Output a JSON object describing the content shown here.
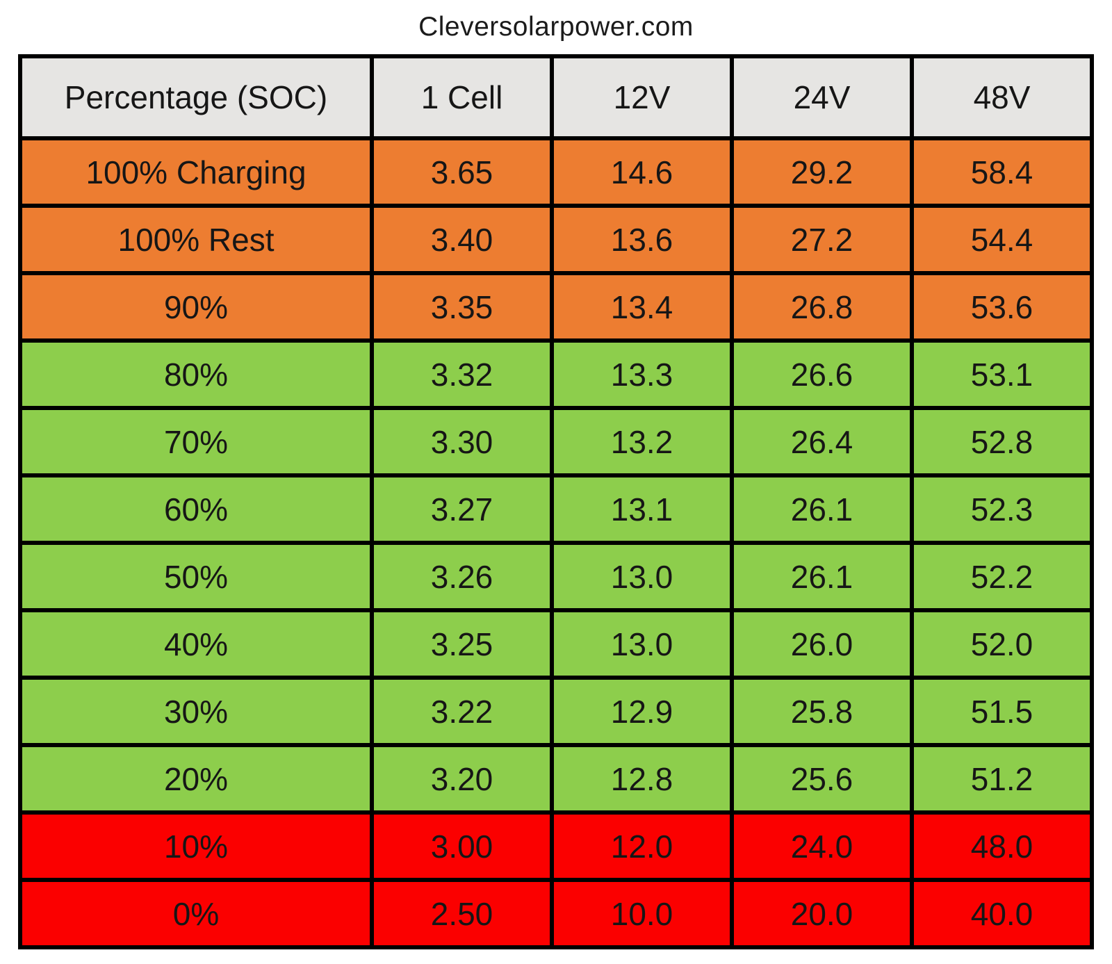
{
  "title": "Cleversolarpower.com",
  "colors": {
    "header_bg": "#E6E5E3",
    "orange": "#ED7D31",
    "green": "#8DCE4C",
    "red": "#FB0000",
    "border": "#000000",
    "text": "#1A1A1A"
  },
  "chart_data": {
    "type": "table",
    "title": "Cleversolarpower.com",
    "columns": [
      "Percentage (SOC)",
      "1 Cell",
      "12V",
      "24V",
      "48V"
    ],
    "rows": [
      {
        "label": "100% Charging",
        "values": [
          "3.65",
          "14.6",
          "29.2",
          "58.4"
        ],
        "color": "orange"
      },
      {
        "label": "100% Rest",
        "values": [
          "3.40",
          "13.6",
          "27.2",
          "54.4"
        ],
        "color": "orange"
      },
      {
        "label": "90%",
        "values": [
          "3.35",
          "13.4",
          "26.8",
          "53.6"
        ],
        "color": "orange"
      },
      {
        "label": "80%",
        "values": [
          "3.32",
          "13.3",
          "26.6",
          "53.1"
        ],
        "color": "green"
      },
      {
        "label": "70%",
        "values": [
          "3.30",
          "13.2",
          "26.4",
          "52.8"
        ],
        "color": "green"
      },
      {
        "label": "60%",
        "values": [
          "3.27",
          "13.1",
          "26.1",
          "52.3"
        ],
        "color": "green"
      },
      {
        "label": "50%",
        "values": [
          "3.26",
          "13.0",
          "26.1",
          "52.2"
        ],
        "color": "green"
      },
      {
        "label": "40%",
        "values": [
          "3.25",
          "13.0",
          "26.0",
          "52.0"
        ],
        "color": "green"
      },
      {
        "label": "30%",
        "values": [
          "3.22",
          "12.9",
          "25.8",
          "51.5"
        ],
        "color": "green"
      },
      {
        "label": "20%",
        "values": [
          "3.20",
          "12.8",
          "25.6",
          "51.2"
        ],
        "color": "green"
      },
      {
        "label": "10%",
        "values": [
          "3.00",
          "12.0",
          "24.0",
          "48.0"
        ],
        "color": "red"
      },
      {
        "label": "0%",
        "values": [
          "2.50",
          "10.0",
          "20.0",
          "40.0"
        ],
        "color": "red"
      }
    ]
  }
}
